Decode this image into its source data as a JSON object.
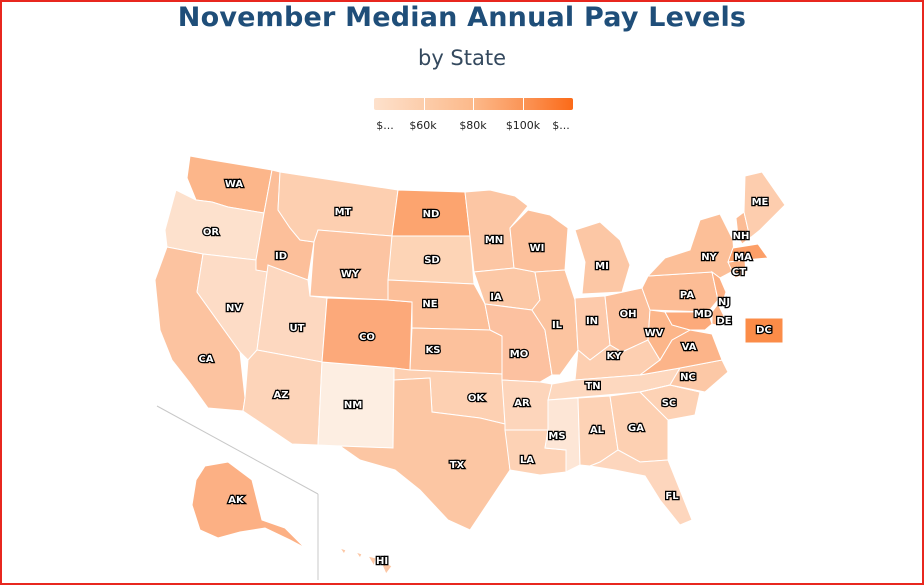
{
  "title": "November Median Annual Pay Levels",
  "subtitle": "by State",
  "legend": {
    "labels": [
      "$...",
      "$60k",
      "$80k",
      "$100k",
      "$..."
    ],
    "gradient": [
      "#fde1cc",
      "#fcb98a",
      "#fb8d4c",
      "#fb6a18"
    ]
  },
  "states": [
    {
      "id": "WA",
      "label": "WA",
      "color": "#fcb68a"
    },
    {
      "id": "OR",
      "label": "OR",
      "color": "#fde1cd"
    },
    {
      "id": "CA",
      "label": "CA",
      "color": "#fcc3a0"
    },
    {
      "id": "NV",
      "label": "NV",
      "color": "#fddcc6"
    },
    {
      "id": "ID",
      "label": "ID",
      "color": "#fcbf9a"
    },
    {
      "id": "MT",
      "label": "MT",
      "color": "#fdcfb0"
    },
    {
      "id": "WY",
      "label": "WY",
      "color": "#fcc4a2"
    },
    {
      "id": "UT",
      "label": "UT",
      "color": "#fdd8c0"
    },
    {
      "id": "AZ",
      "label": "AZ",
      "color": "#fdd4b9"
    },
    {
      "id": "NM",
      "label": "NM",
      "color": "#fdeee2"
    },
    {
      "id": "CO",
      "label": "CO",
      "color": "#fca97a"
    },
    {
      "id": "ND",
      "label": "ND",
      "color": "#fca46f"
    },
    {
      "id": "SD",
      "label": "SD",
      "color": "#fdd4b6"
    },
    {
      "id": "NE",
      "label": "NE",
      "color": "#fcbf99"
    },
    {
      "id": "KS",
      "label": "KS",
      "color": "#fcc19c"
    },
    {
      "id": "OK",
      "label": "OK",
      "color": "#fdd0b2"
    },
    {
      "id": "TX",
      "label": "TX",
      "color": "#fcc6a3"
    },
    {
      "id": "MN",
      "label": "MN",
      "color": "#fcc6a4"
    },
    {
      "id": "IA",
      "label": "IA",
      "color": "#fcc8a6"
    },
    {
      "id": "MO",
      "label": "MO",
      "color": "#fcc1a0"
    },
    {
      "id": "AR",
      "label": "AR",
      "color": "#fdd5bb"
    },
    {
      "id": "LA",
      "label": "LA",
      "color": "#fdd2b5"
    },
    {
      "id": "WI",
      "label": "WI",
      "color": "#fcc09b"
    },
    {
      "id": "IL",
      "label": "IL",
      "color": "#fcc4a0"
    },
    {
      "id": "MI",
      "label": "MI",
      "color": "#fcc7a5"
    },
    {
      "id": "IN",
      "label": "IN",
      "color": "#fdcaab"
    },
    {
      "id": "OH",
      "label": "OH",
      "color": "#fcc09c"
    },
    {
      "id": "KY",
      "label": "KY",
      "color": "#fdcfb1"
    },
    {
      "id": "TN",
      "label": "TN",
      "color": "#fdd8bf"
    },
    {
      "id": "MS",
      "label": "MS",
      "color": "#fde6d6"
    },
    {
      "id": "AL",
      "label": "AL",
      "color": "#fdd2b5"
    },
    {
      "id": "GA",
      "label": "GA",
      "color": "#fdd0b2"
    },
    {
      "id": "FL",
      "label": "FL",
      "color": "#fdd6bd"
    },
    {
      "id": "SC",
      "label": "SC",
      "color": "#fdd2b5"
    },
    {
      "id": "NC",
      "label": "NC",
      "color": "#fcc8a6"
    },
    {
      "id": "VA",
      "label": "VA",
      "color": "#fcb489"
    },
    {
      "id": "WV",
      "label": "WV",
      "color": "#fcb68a"
    },
    {
      "id": "PA",
      "label": "PA",
      "color": "#fcbc95"
    },
    {
      "id": "NY",
      "label": "NY",
      "color": "#fcbf98"
    },
    {
      "id": "MD",
      "label": "MD",
      "color": "#fcaa7b"
    },
    {
      "id": "DE",
      "label": "DE",
      "color": "#fcb488"
    },
    {
      "id": "NJ",
      "label": "NJ",
      "color": "#fcb083"
    },
    {
      "id": "CT",
      "label": "CT",
      "color": "#fcb386"
    },
    {
      "id": "MA",
      "label": "MA",
      "color": "#fc9f68"
    },
    {
      "id": "NH",
      "label": "NH",
      "color": "#fcbc95"
    },
    {
      "id": "ME",
      "label": "ME",
      "color": "#fdcdae"
    },
    {
      "id": "DC",
      "label": "DC",
      "color": "#fb8c48"
    },
    {
      "id": "AK",
      "label": "AK",
      "color": "#fcb084"
    },
    {
      "id": "HI",
      "label": "HI",
      "color": "#fcc7a5"
    }
  ]
}
